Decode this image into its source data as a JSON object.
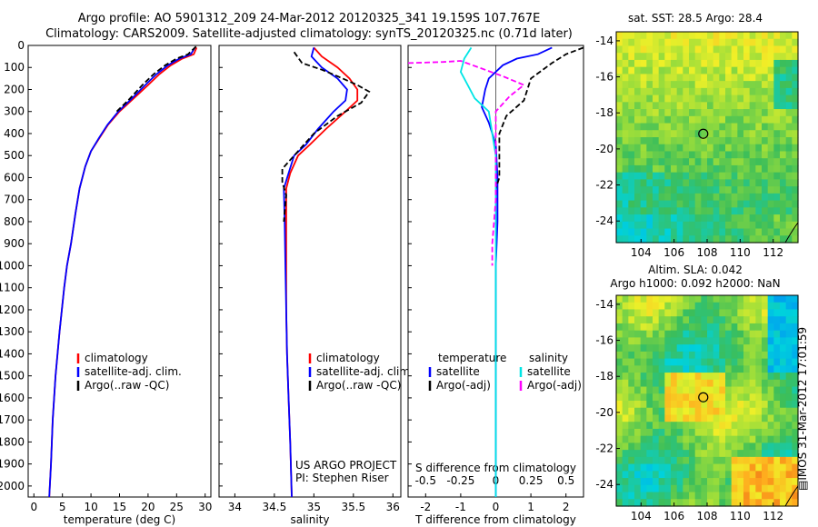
{
  "titles": {
    "line1": "Argo profile: AO 5901312_209 24-Mar-2012 20120325_341 19.159S 107.767E",
    "line2": "Climatology: CARS2009. Satellite-adjusted climatology: synTS_20120325.nc (0.71d later)"
  },
  "side_label": "IMOS 31-Mar-2012 17:01:59",
  "maps": {
    "sst_title": "sat. SST: 28.5 Argo: 28.4",
    "sla_title1": "Altim. SLA: 0.042",
    "sla_title2": "Argo h1000: 0.092 h2000: NaN",
    "y_ticks": [
      "-14",
      "-16",
      "-18",
      "-20",
      "-22",
      "-24"
    ],
    "x_ticks": [
      "104",
      "106",
      "108",
      "110",
      "112"
    ],
    "argo_position": {
      "lon": 107.767,
      "lat": -19.159
    }
  },
  "project": {
    "line1": "US ARGO PROJECT",
    "line2": "PI: Stephen Riser"
  },
  "chart_data": [
    {
      "type": "line",
      "xlabel": "temperature (deg C)",
      "ylabel": "",
      "xlim": [
        -1,
        31
      ],
      "ylim": [
        2050,
        0
      ],
      "x_ticks": [
        "0",
        "5",
        "10",
        "15",
        "20",
        "25",
        "30"
      ],
      "y_ticks": [
        "0",
        "100",
        "200",
        "300",
        "400",
        "500",
        "600",
        "700",
        "800",
        "900",
        "1000",
        "1100",
        "1200",
        "1300",
        "1400",
        "1500",
        "1600",
        "1700",
        "1800",
        "1900",
        "2000"
      ],
      "legend": [
        "climatology",
        "satellite-adj. clim.",
        "Argo(..raw -QC)"
      ],
      "series": [
        {
          "name": "climatology",
          "color": "#ff0000",
          "style": "solid",
          "points": [
            [
              28.5,
              10
            ],
            [
              28,
              40
            ],
            [
              26,
              60
            ],
            [
              24,
              90
            ],
            [
              22,
              130
            ],
            [
              20,
              180
            ],
            [
              17.5,
              240
            ],
            [
              15,
              300
            ],
            [
              13,
              360
            ],
            [
              11.5,
              420
            ],
            [
              10,
              480
            ],
            [
              9,
              550
            ],
            [
              8,
              650
            ],
            [
              7.3,
              760
            ],
            [
              6.5,
              900
            ],
            [
              5.8,
              1000
            ],
            [
              5.3,
              1100
            ],
            [
              4.5,
              1300
            ],
            [
              3.8,
              1500
            ],
            [
              3.3,
              1700
            ],
            [
              3,
              1900
            ],
            [
              2.7,
              2050
            ]
          ]
        },
        {
          "name": "satellite-adj. clim.",
          "color": "#0000ff",
          "style": "solid",
          "points": [
            [
              28.2,
              10
            ],
            [
              27.5,
              40
            ],
            [
              25.5,
              60
            ],
            [
              23.5,
              90
            ],
            [
              21.5,
              130
            ],
            [
              19.5,
              180
            ],
            [
              17.2,
              240
            ],
            [
              14.8,
              300
            ],
            [
              12.9,
              360
            ],
            [
              11.4,
              420
            ],
            [
              10,
              480
            ],
            [
              9,
              550
            ],
            [
              8,
              650
            ],
            [
              7.3,
              760
            ],
            [
              6.5,
              900
            ],
            [
              5.8,
              1000
            ],
            [
              5.3,
              1100
            ],
            [
              4.5,
              1300
            ],
            [
              3.8,
              1500
            ],
            [
              3.3,
              1700
            ],
            [
              3,
              1900
            ],
            [
              2.7,
              2050
            ]
          ]
        },
        {
          "name": "Argo(..raw -QC)",
          "color": "#000000",
          "style": "dashed",
          "points": [
            [
              28.4,
              5
            ],
            [
              27,
              40
            ],
            [
              25,
              60
            ],
            [
              23,
              90
            ],
            [
              21,
              130
            ],
            [
              19,
              180
            ],
            [
              16.5,
              250
            ],
            [
              14.5,
              300
            ]
          ]
        }
      ]
    },
    {
      "type": "line",
      "xlabel": "salinity",
      "ylabel": "",
      "xlim": [
        33.8,
        36.1
      ],
      "ylim": [
        2050,
        0
      ],
      "x_ticks": [
        "34",
        "34.5",
        "35",
        "35.5",
        "36"
      ],
      "legend": [
        "climatology",
        "satellite-adj. clim.",
        "Argo(..raw -QC)"
      ],
      "series": [
        {
          "name": "climatology",
          "color": "#ff0000",
          "style": "solid",
          "points": [
            [
              35.0,
              10
            ],
            [
              35.1,
              50
            ],
            [
              35.3,
              100
            ],
            [
              35.45,
              150
            ],
            [
              35.55,
              200
            ],
            [
              35.55,
              250
            ],
            [
              35.4,
              300
            ],
            [
              35.15,
              380
            ],
            [
              34.95,
              450
            ],
            [
              34.8,
              500
            ],
            [
              34.7,
              580
            ],
            [
              34.65,
              650
            ],
            [
              34.65,
              800
            ],
            [
              34.65,
              1000
            ],
            [
              34.65,
              1200
            ],
            [
              34.66,
              1400
            ],
            [
              34.68,
              1600
            ],
            [
              34.7,
              1800
            ],
            [
              34.72,
              2050
            ]
          ]
        },
        {
          "name": "satellite-adj. clim.",
          "color": "#0000ff",
          "style": "solid",
          "points": [
            [
              35.0,
              10
            ],
            [
              34.97,
              50
            ],
            [
              35.1,
              100
            ],
            [
              35.3,
              150
            ],
            [
              35.42,
              200
            ],
            [
              35.4,
              250
            ],
            [
              35.25,
              300
            ],
            [
              35.05,
              380
            ],
            [
              34.9,
              450
            ],
            [
              34.75,
              500
            ],
            [
              34.68,
              580
            ],
            [
              34.62,
              650
            ],
            [
              34.63,
              800
            ],
            [
              34.64,
              1000
            ],
            [
              34.65,
              1200
            ],
            [
              34.66,
              1400
            ],
            [
              34.68,
              1600
            ],
            [
              34.7,
              1800
            ],
            [
              34.72,
              2050
            ]
          ]
        },
        {
          "name": "Argo(..raw -QC)",
          "color": "#000000",
          "style": "dashed",
          "points": [
            [
              34.75,
              30
            ],
            [
              34.85,
              80
            ],
            [
              35.1,
              110
            ],
            [
              35.3,
              140
            ],
            [
              35.55,
              180
            ],
            [
              35.7,
              210
            ],
            [
              35.6,
              260
            ],
            [
              35.3,
              320
            ],
            [
              35.0,
              400
            ],
            [
              34.8,
              480
            ],
            [
              34.6,
              560
            ],
            [
              34.6,
              620
            ],
            [
              34.65,
              680
            ],
            [
              34.62,
              800
            ]
          ]
        }
      ]
    },
    {
      "type": "line",
      "xlabel": "T difference from climatology",
      "ylabel": "",
      "xlim": [
        -2.5,
        2.5
      ],
      "ylim": [
        2050,
        0
      ],
      "x_ticks": [
        "-2",
        "-1",
        "0",
        "1",
        "2"
      ],
      "x2label": "S difference from climatology",
      "x2_ticks": [
        "-0.5",
        "-0.25",
        "0",
        "0.25",
        "0.5"
      ],
      "legend_headers": [
        "temperature",
        "salinity"
      ],
      "legend": [
        "satellite",
        "Argo(-adj)",
        "satellite",
        "Argo(-adj)"
      ],
      "series": [
        {
          "name": "satellite",
          "color": "#0000ff",
          "style": "solid",
          "points": [
            [
              1.6,
              10
            ],
            [
              1.2,
              40
            ],
            [
              0.6,
              60
            ],
            [
              0.2,
              90
            ],
            [
              -0.2,
              150
            ],
            [
              -0.3,
              200
            ],
            [
              -0.4,
              280
            ],
            [
              -0.2,
              350
            ],
            [
              0.0,
              450
            ],
            [
              0.05,
              600
            ],
            [
              0.05,
              800
            ],
            [
              0.0,
              1000
            ],
            [
              0.0,
              1500
            ],
            [
              0.0,
              2050
            ]
          ]
        },
        {
          "name": "Argo(-adj)",
          "color": "#000000",
          "style": "dashed",
          "points": [
            [
              2.5,
              10
            ],
            [
              2.0,
              40
            ],
            [
              1.6,
              80
            ],
            [
              1.0,
              150
            ],
            [
              0.8,
              250
            ],
            [
              0.3,
              320
            ],
            [
              0.1,
              400
            ],
            [
              0.1,
              600
            ],
            [
              0.0,
              650
            ]
          ]
        },
        {
          "name": "satellite",
          "color": "#00e5e5",
          "style": "solid",
          "points": [
            [
              -0.7,
              10
            ],
            [
              -0.9,
              60
            ],
            [
              -1.0,
              120
            ],
            [
              -0.8,
              180
            ],
            [
              -0.6,
              240
            ],
            [
              -0.2,
              300
            ],
            [
              -0.1,
              400
            ],
            [
              0.0,
              500
            ],
            [
              0.0,
              800
            ],
            [
              0.0,
              1200
            ],
            [
              0.0,
              2050
            ]
          ]
        },
        {
          "name": "Argo(-adj)",
          "color": "#ff00ff",
          "style": "dashed",
          "points": [
            [
              -2.5,
              80
            ],
            [
              -1.5,
              75
            ],
            [
              -1.0,
              70
            ],
            [
              0.2,
              140
            ],
            [
              0.8,
              180
            ],
            [
              0.4,
              230
            ],
            [
              0.0,
              300
            ],
            [
              0.0,
              700
            ],
            [
              -0.1,
              900
            ],
            [
              -0.1,
              1000
            ]
          ]
        }
      ]
    }
  ]
}
